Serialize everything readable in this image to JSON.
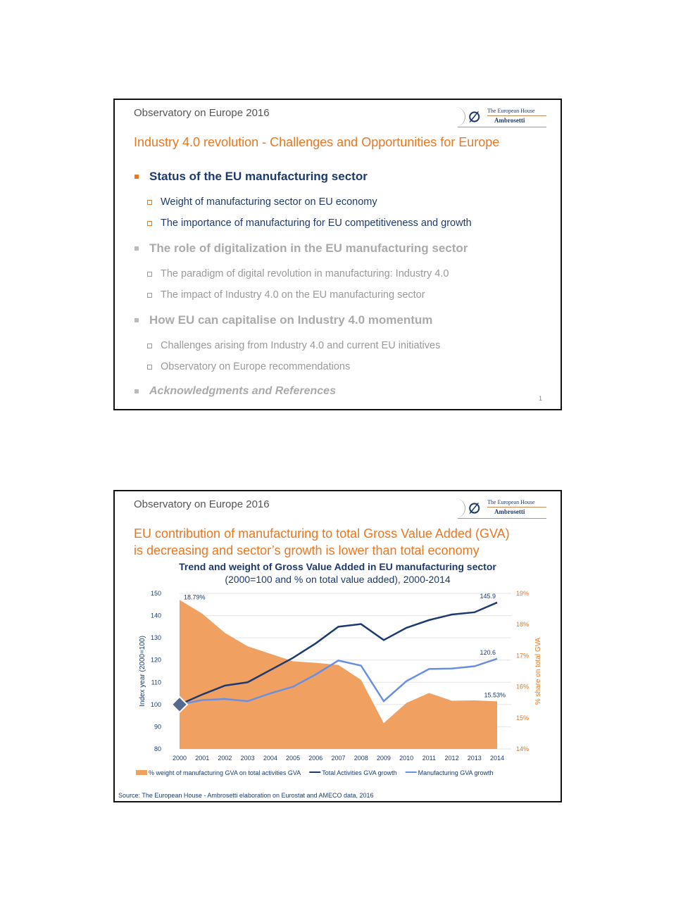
{
  "slide1": {
    "header": "Observatory on Europe 2016",
    "logo": {
      "line1": "The European House",
      "line2": "Ambrosetti"
    },
    "title": "Industry 4.0 revolution - Challenges and Opportunities for Europe",
    "sections": [
      {
        "label": "Status of the EU manufacturing sector",
        "items": [
          "Weight of manufacturing sector on EU economy",
          "The importance of manufacturing for EU competitiveness and growth"
        ]
      },
      {
        "label": "The role of digitalization in the EU manufacturing sector",
        "items": [
          "The paradigm of digital revolution in manufacturing: Industry 4.0",
          "The impact of Industry 4.0 on the EU manufacturing sector"
        ]
      },
      {
        "label": "How EU can capitalise on Industry 4.0 momentum",
        "items": [
          "Challenges arising from Industry 4.0 and current EU initiatives",
          "Observatory on Europe recommendations"
        ]
      },
      {
        "label": "Acknowledgments and References",
        "items": []
      }
    ],
    "page_number": "1"
  },
  "slide2": {
    "header": "Observatory on Europe 2016",
    "logo": {
      "line1": "The European House",
      "line2": "Ambrosetti"
    },
    "title_line1": "EU contribution of manufacturing to total Gross Value Added (GVA)",
    "title_line2": "is decreasing and sector’s growth is lower than total economy",
    "source": "Source: The European House - Ambrosetti elaboration on Eurostat and AMECO data, 2016"
  },
  "chart_data": {
    "type": "line",
    "title": "Trend and weight of Gross Value Added in EU manufacturing sector",
    "subtitle": "(2000=100 and % on total value added), 2000-2014",
    "x": [
      "2000",
      "2001",
      "2002",
      "2003",
      "2004",
      "2005",
      "2006",
      "2007",
      "2008",
      "2009",
      "2010",
      "2011",
      "2012",
      "2013",
      "2014"
    ],
    "ylabel": "Index year (2000=100)",
    "ylabel_right": "% share on total GVA",
    "ylim": [
      80,
      150
    ],
    "yticks": [
      "80",
      "90",
      "100",
      "110",
      "120",
      "130",
      "140",
      "150"
    ],
    "ylim_right": [
      14,
      19
    ],
    "yticks_right": [
      "14%",
      "15%",
      "16%",
      "17%",
      "18%",
      "19%"
    ],
    "series": [
      {
        "name": "% weight of manufacturing GVA on total activities GVA",
        "type": "area",
        "axis": "right",
        "color": "#f0a060",
        "values": [
          18.79,
          18.35,
          17.73,
          17.3,
          17.06,
          16.82,
          16.77,
          16.7,
          16.22,
          14.83,
          15.48,
          15.8,
          15.55,
          15.56,
          15.53
        ]
      },
      {
        "name": "Total Activities GVA growth",
        "type": "line",
        "axis": "left",
        "color": "#1d3a6e",
        "values": [
          100,
          104.5,
          108.5,
          110,
          115.5,
          121,
          127.5,
          135,
          136.2,
          129,
          134.5,
          138,
          140.5,
          141.5,
          145.9
        ]
      },
      {
        "name": "Manufacturing GVA growth",
        "type": "line",
        "axis": "left",
        "color": "#6a8fe0",
        "values": [
          100,
          102,
          102.5,
          101.5,
          105,
          108,
          113.5,
          119.8,
          117.5,
          101.5,
          110.5,
          116,
          116.2,
          117.2,
          120.6
        ]
      }
    ],
    "annotations": [
      "18.79%",
      "145.9",
      "120.6",
      "15.53%"
    ],
    "legend": "bottom"
  }
}
